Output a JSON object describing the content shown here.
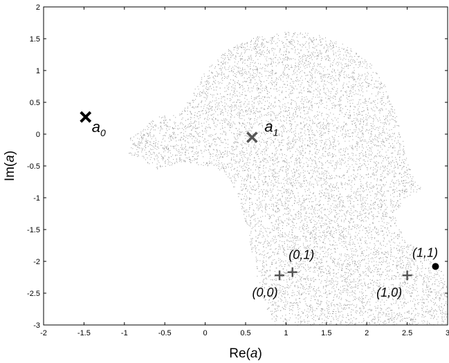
{
  "chart_data": {
    "type": "scatter",
    "title": "",
    "xlabel": {
      "prefix": "Re(",
      "var": "a",
      "suffix": ")"
    },
    "ylabel": {
      "prefix": "Im(",
      "var": "a",
      "suffix": ")"
    },
    "xlim": [
      -2,
      3
    ],
    "ylim": [
      -3,
      2
    ],
    "xticks": [
      "-2",
      "-1.5",
      "-1",
      "-0.5",
      "0",
      "0.5",
      "1",
      "1.5",
      "2",
      "2.5",
      "3"
    ],
    "yticks": [
      "2",
      "1.5",
      "1",
      "0.5",
      "0",
      "-0.5",
      "-1",
      "-1.5",
      "-2",
      "-2.5",
      "-3"
    ],
    "grid": false,
    "region": {
      "fill": "random-dot-cloud",
      "color": "#777777",
      "boundary": [
        [
          -0.1,
          0.78
        ],
        [
          0.0,
          1.0
        ],
        [
          0.25,
          1.32
        ],
        [
          0.6,
          1.53
        ],
        [
          1.0,
          1.61
        ],
        [
          1.4,
          1.58
        ],
        [
          1.75,
          1.4
        ],
        [
          2.05,
          1.1
        ],
        [
          2.28,
          0.65
        ],
        [
          2.42,
          0.1
        ],
        [
          2.52,
          -0.5
        ],
        [
          2.65,
          -0.82
        ],
        [
          2.77,
          -0.8
        ],
        [
          2.45,
          -1.02
        ],
        [
          2.35,
          -1.3
        ],
        [
          2.45,
          -1.6
        ],
        [
          2.7,
          -1.9
        ],
        [
          2.93,
          -2.15
        ],
        [
          3.0,
          -2.35
        ],
        [
          3.0,
          -3.0
        ],
        [
          0.85,
          -3.0
        ],
        [
          0.7,
          -2.6
        ],
        [
          0.6,
          -2.0
        ],
        [
          0.5,
          -1.4
        ],
        [
          0.4,
          -0.95
        ],
        [
          0.25,
          -0.62
        ],
        [
          0.05,
          -0.5
        ],
        [
          -0.3,
          -0.45
        ],
        [
          -0.6,
          -0.55
        ],
        [
          -0.95,
          -0.3
        ],
        [
          -0.93,
          -0.05
        ],
        [
          -0.75,
          0.15
        ],
        [
          -0.55,
          0.3
        ],
        [
          -0.3,
          0.35
        ],
        [
          -0.2,
          0.55
        ]
      ]
    },
    "points": [
      {
        "id": "a0",
        "marker": "x",
        "x": -1.48,
        "y": 0.27,
        "color": "#000000",
        "label": "a",
        "sub": "0"
      },
      {
        "id": "a1",
        "marker": "x",
        "x": 0.58,
        "y": -0.05,
        "color": "#555555",
        "label": "a",
        "sub": "1"
      },
      {
        "id": "p00",
        "marker": "+",
        "x": 0.92,
        "y": -2.22,
        "color": "#555555",
        "label": "(0,0)"
      },
      {
        "id": "p01",
        "marker": "+",
        "x": 1.08,
        "y": -2.17,
        "color": "#555555",
        "label": "(0,1)"
      },
      {
        "id": "p10",
        "marker": "+",
        "x": 2.5,
        "y": -2.22,
        "color": "#555555",
        "label": "(1,0)"
      },
      {
        "id": "p11",
        "marker": "dot",
        "x": 2.85,
        "y": -2.08,
        "color": "#000000",
        "label": "(1,1)"
      }
    ]
  }
}
